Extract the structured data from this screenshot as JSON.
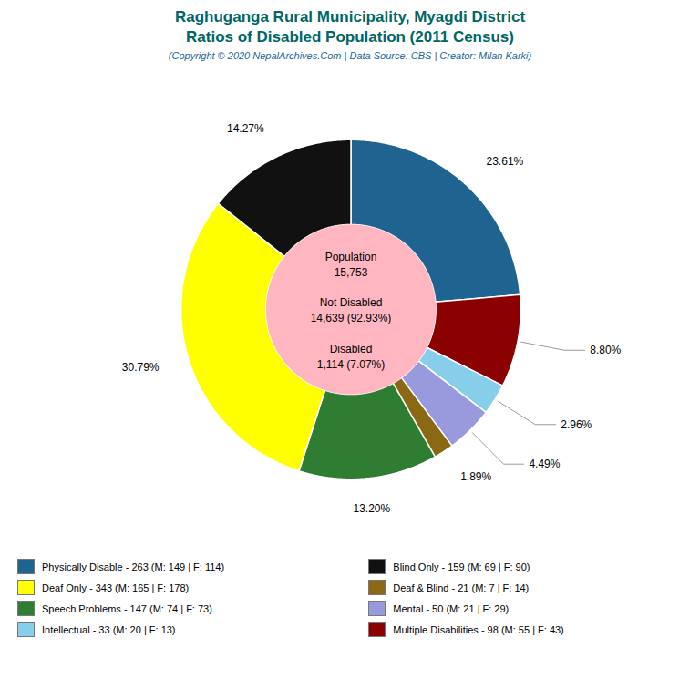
{
  "chart_data": {
    "type": "pie",
    "title": "Raghuganga Rural Municipality, Myagdi District\nRatios of Disabled Population (2011 Census)",
    "subtitle": "(Copyright © 2020 NepalArchives.Com | Data Source: CBS | Creator: Milan Karki)",
    "title_color": "#006666",
    "subtitle_color": "#1a6699",
    "values": [
      23.61,
      8.8,
      2.96,
      4.49,
      1.89,
      13.2,
      30.79,
      14.27
    ],
    "value_labels": [
      "23.61%",
      "8.80%",
      "2.96%",
      "4.49%",
      "1.89%",
      "13.20%",
      "30.79%",
      "14.27%"
    ],
    "colors": [
      "#1f6391",
      "#8b0000",
      "#87ceeb",
      "#9999dd",
      "#8B6914",
      "#2e7d32",
      "#ffff00",
      "#111111"
    ],
    "data_labels": true,
    "center_color": "#ffb6c1",
    "annotations": [
      "Population\n15,753",
      "Not Disabled\n14,639 (92.93%)",
      "Disabled\n1,114 (7.07%)"
    ],
    "legend_items": [
      {
        "label": "Physically Disable - 263 (M: 149 | F: 114)",
        "color": "#1f6391"
      },
      {
        "label": "Deaf Only - 343 (M: 165 | F: 178)",
        "color": "#ffff00"
      },
      {
        "label": "Speech Problems - 147 (M: 74 | F: 73)",
        "color": "#2e7d32"
      },
      {
        "label": "Intellectual - 33 (M: 20 | F: 13)",
        "color": "#87ceeb"
      },
      {
        "label": "Blind Only - 159 (M: 69 | F: 90)",
        "color": "#111111"
      },
      {
        "label": "Deaf & Blind - 21 (M: 7 | F: 14)",
        "color": "#8B6914"
      },
      {
        "label": "Mental - 50 (M: 21 | F: 29)",
        "color": "#9999dd"
      },
      {
        "label": "Multiple Disabilities - 98 (M: 55 | F: 43)",
        "color": "#8b0000"
      }
    ]
  }
}
